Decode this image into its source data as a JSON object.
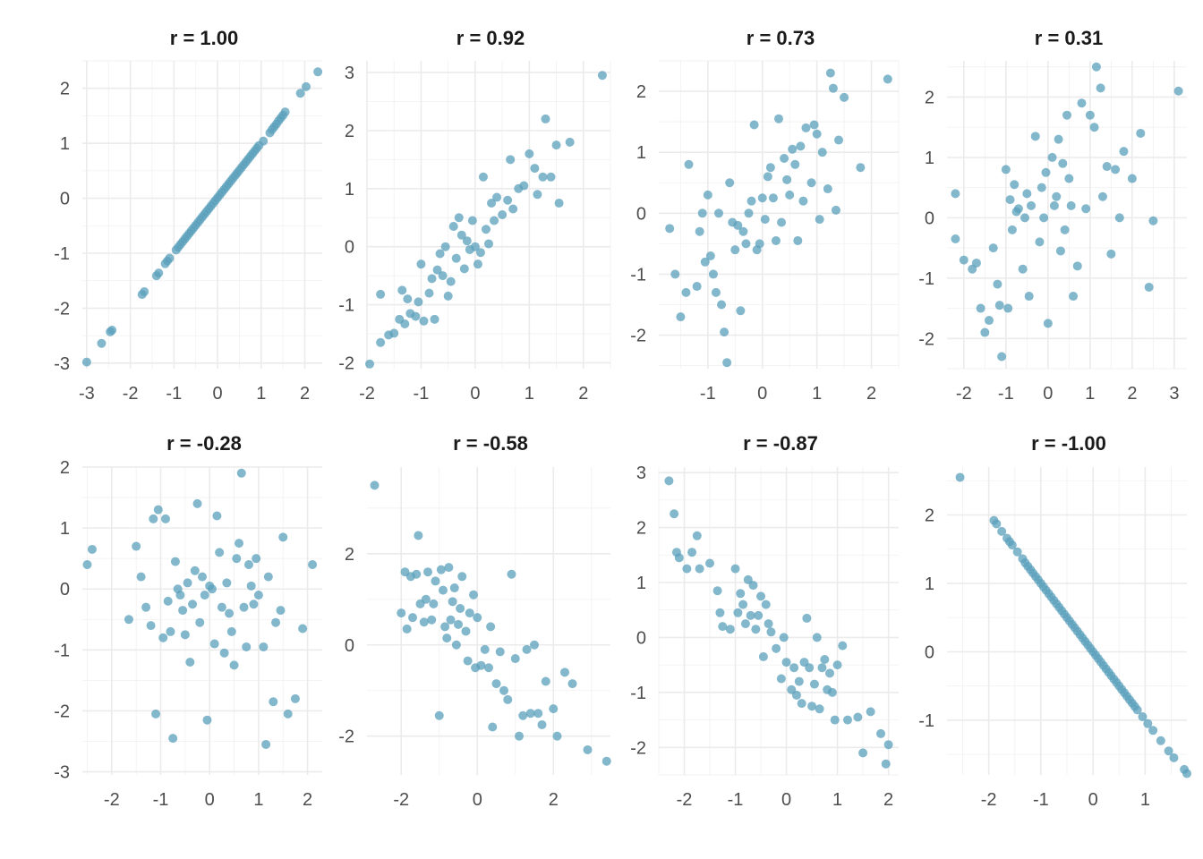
{
  "point_color": "#5a9fbb",
  "chart_data": [
    {
      "type": "scatter",
      "title": "r = 1.00",
      "grid": true,
      "xlim": [
        -3.1,
        2.4
      ],
      "ylim": [
        -3.1,
        2.5
      ],
      "xticks": [
        -3,
        -2,
        -1,
        0,
        1,
        2
      ],
      "yticks": [
        -3,
        -2,
        -1,
        0,
        1,
        2
      ],
      "x": [
        -3.0,
        -2.66,
        -2.46,
        -2.42,
        -1.73,
        -1.68,
        -1.4,
        -1.35,
        -1.2,
        -1.15,
        -1.1,
        -0.95,
        -0.9,
        -0.85,
        -0.8,
        -0.75,
        -0.7,
        -0.65,
        -0.6,
        -0.55,
        -0.5,
        -0.45,
        -0.4,
        -0.35,
        -0.3,
        -0.25,
        -0.2,
        -0.15,
        -0.1,
        -0.05,
        0.0,
        0.05,
        0.1,
        0.15,
        0.2,
        0.25,
        0.3,
        0.35,
        0.4,
        0.45,
        0.5,
        0.55,
        0.6,
        0.65,
        0.7,
        0.75,
        0.8,
        0.85,
        0.9,
        0.95,
        1.05,
        1.2,
        1.25,
        1.3,
        1.35,
        1.4,
        1.45,
        1.5,
        1.55,
        1.9,
        2.03,
        2.3
      ],
      "y": [
        -2.98,
        -2.64,
        -2.43,
        -2.4,
        -1.75,
        -1.7,
        -1.41,
        -1.36,
        -1.19,
        -1.14,
        -1.09,
        -0.94,
        -0.89,
        -0.84,
        -0.79,
        -0.74,
        -0.69,
        -0.64,
        -0.59,
        -0.54,
        -0.49,
        -0.44,
        -0.39,
        -0.34,
        -0.29,
        -0.24,
        -0.19,
        -0.14,
        -0.09,
        -0.04,
        0.01,
        0.06,
        0.11,
        0.16,
        0.21,
        0.26,
        0.31,
        0.36,
        0.41,
        0.46,
        0.51,
        0.56,
        0.61,
        0.66,
        0.71,
        0.76,
        0.81,
        0.86,
        0.91,
        0.96,
        1.04,
        1.19,
        1.25,
        1.3,
        1.35,
        1.41,
        1.46,
        1.51,
        1.57,
        1.91,
        2.03,
        2.3
      ]
    },
    {
      "type": "scatter",
      "title": "r = 0.92",
      "grid": true,
      "xlim": [
        -2.0,
        2.5
      ],
      "ylim": [
        -2.1,
        3.2
      ],
      "xticks": [
        -2,
        -1,
        0,
        1,
        2
      ],
      "yticks": [
        -2,
        -1,
        0,
        1,
        2,
        3
      ],
      "x": [
        -1.95,
        -1.75,
        -1.75,
        -1.6,
        -1.5,
        -1.4,
        -1.35,
        -1.3,
        -1.25,
        -1.2,
        -1.1,
        -1.05,
        -1.0,
        -0.95,
        -0.85,
        -0.8,
        -0.75,
        -0.7,
        -0.65,
        -0.6,
        -0.55,
        -0.5,
        -0.45,
        -0.4,
        -0.35,
        -0.3,
        -0.25,
        -0.2,
        -0.15,
        -0.1,
        -0.05,
        0.0,
        0.05,
        0.1,
        0.15,
        0.2,
        0.25,
        0.3,
        0.35,
        0.4,
        0.5,
        0.6,
        0.65,
        0.7,
        0.8,
        0.9,
        1.0,
        1.1,
        1.15,
        1.25,
        1.3,
        1.4,
        1.5,
        1.55,
        1.75,
        2.35
      ],
      "y": [
        -2.02,
        -1.65,
        -0.82,
        -1.52,
        -1.49,
        -1.25,
        -0.75,
        -1.33,
        -0.9,
        -1.15,
        -1.2,
        -0.95,
        -0.3,
        -1.28,
        -0.8,
        -0.55,
        -1.25,
        -0.4,
        -0.12,
        -0.5,
        0.0,
        -0.85,
        -0.6,
        0.35,
        -0.2,
        0.5,
        0.2,
        -0.38,
        0.1,
        -0.05,
        0.45,
        0.0,
        -0.3,
        -0.1,
        1.2,
        0.3,
        0.05,
        0.75,
        0.45,
        0.85,
        0.55,
        0.8,
        1.5,
        0.65,
        1.0,
        1.05,
        1.6,
        1.35,
        0.9,
        1.2,
        2.2,
        1.2,
        1.75,
        0.75,
        1.8,
        2.95
      ]
    },
    {
      "type": "scatter",
      "title": "r = 0.73",
      "grid": true,
      "xlim": [
        -1.9,
        2.5
      ],
      "ylim": [
        -2.55,
        2.5
      ],
      "xticks": [
        -1,
        0,
        1,
        2
      ],
      "yticks": [
        -2,
        -1,
        0,
        1,
        2
      ],
      "x": [
        -1.7,
        -1.6,
        -1.5,
        -1.4,
        -1.35,
        -1.2,
        -1.15,
        -1.1,
        -1.05,
        -1.0,
        -0.95,
        -0.9,
        -0.85,
        -0.8,
        -0.75,
        -0.7,
        -0.65,
        -0.6,
        -0.55,
        -0.5,
        -0.45,
        -0.4,
        -0.35,
        -0.3,
        -0.25,
        -0.2,
        -0.15,
        -0.1,
        -0.05,
        0.0,
        0.05,
        0.1,
        0.15,
        0.2,
        0.25,
        0.3,
        0.35,
        0.4,
        0.45,
        0.5,
        0.55,
        0.6,
        0.65,
        0.7,
        0.75,
        0.8,
        0.9,
        0.95,
        1.0,
        1.05,
        1.1,
        1.2,
        1.25,
        1.3,
        1.35,
        1.4,
        1.5,
        1.8,
        2.3
      ],
      "y": [
        -0.25,
        -1.0,
        -1.7,
        -1.3,
        0.8,
        -1.2,
        -0.3,
        0.0,
        -0.8,
        0.3,
        -0.7,
        -1.0,
        -1.3,
        0.0,
        -1.5,
        -1.95,
        -2.45,
        0.5,
        -0.15,
        -0.6,
        -0.2,
        -1.6,
        -0.3,
        -0.5,
        0.0,
        0.2,
        1.45,
        -0.6,
        -0.5,
        0.25,
        -0.1,
        0.6,
        0.75,
        0.25,
        -0.45,
        1.55,
        -0.15,
        0.9,
        0.55,
        0.3,
        1.05,
        0.8,
        -0.45,
        1.1,
        0.2,
        1.4,
        0.5,
        1.45,
        1.3,
        -0.1,
        1.0,
        0.4,
        2.3,
        2.05,
        0.05,
        1.2,
        1.9,
        0.75,
        2.2
      ]
    },
    {
      "type": "scatter",
      "title": "r = 0.31",
      "grid": true,
      "xlim": [
        -2.4,
        3.3
      ],
      "ylim": [
        -2.5,
        2.6
      ],
      "xticks": [
        -2,
        -1,
        0,
        1,
        2,
        3
      ],
      "yticks": [
        -2,
        -1,
        0,
        1,
        2
      ],
      "x": [
        -2.2,
        -2.2,
        -2.0,
        -1.8,
        -1.7,
        -1.6,
        -1.5,
        -1.4,
        -1.3,
        -1.2,
        -1.15,
        -1.1,
        -1.0,
        -0.95,
        -0.9,
        -0.85,
        -0.8,
        -0.75,
        -0.7,
        -0.6,
        -0.55,
        -0.5,
        -0.45,
        -0.4,
        -0.3,
        -0.2,
        -0.15,
        -0.1,
        -0.05,
        0.0,
        0.1,
        0.15,
        0.2,
        0.25,
        0.3,
        0.35,
        0.4,
        0.45,
        0.5,
        0.55,
        0.6,
        0.7,
        0.8,
        0.9,
        1.0,
        1.1,
        1.15,
        1.25,
        1.3,
        1.4,
        1.5,
        1.6,
        1.7,
        1.8,
        2.0,
        2.2,
        2.4,
        2.5,
        3.1
      ],
      "y": [
        0.4,
        -0.35,
        -0.7,
        -0.85,
        -0.75,
        -1.5,
        -1.9,
        -1.7,
        -0.5,
        -1.1,
        -1.45,
        -2.3,
        0.8,
        -1.5,
        0.3,
        -0.2,
        0.55,
        0.1,
        0.15,
        -0.85,
        0.0,
        0.4,
        -1.3,
        0.2,
        1.35,
        -0.4,
        0.5,
        0.0,
        0.75,
        -1.75,
        1.0,
        0.2,
        0.35,
        1.3,
        -0.55,
        0.9,
        -0.2,
        1.7,
        0.65,
        0.2,
        -1.3,
        -0.8,
        1.9,
        0.15,
        1.7,
        1.5,
        2.5,
        2.15,
        0.35,
        0.85,
        -0.6,
        0.8,
        0.0,
        1.1,
        0.65,
        1.4,
        -1.15,
        -0.05,
        2.1
      ]
    },
    {
      "type": "scatter",
      "title": "r = -0.28",
      "grid": true,
      "xlim": [
        -2.6,
        2.3
      ],
      "ylim": [
        -3.05,
        2.0
      ],
      "xticks": [
        -2,
        -1,
        0,
        1,
        2
      ],
      "yticks": [
        -3,
        -2,
        -1,
        0,
        1,
        2
      ],
      "x": [
        -2.5,
        -2.4,
        -1.65,
        -1.5,
        -1.4,
        -1.3,
        -1.2,
        -1.15,
        -1.1,
        -1.05,
        -0.95,
        -0.9,
        -0.85,
        -0.8,
        -0.75,
        -0.7,
        -0.65,
        -0.6,
        -0.55,
        -0.5,
        -0.45,
        -0.4,
        -0.35,
        -0.3,
        -0.25,
        -0.2,
        -0.15,
        -0.1,
        -0.05,
        0.0,
        0.05,
        0.1,
        0.15,
        0.2,
        0.25,
        0.3,
        0.35,
        0.4,
        0.45,
        0.5,
        0.55,
        0.6,
        0.65,
        0.7,
        0.75,
        0.8,
        0.85,
        0.9,
        0.95,
        1.0,
        1.1,
        1.15,
        1.2,
        1.3,
        1.35,
        1.45,
        1.5,
        1.6,
        1.75,
        1.9,
        2.1
      ],
      "y": [
        0.4,
        0.65,
        -0.5,
        0.7,
        0.2,
        -0.3,
        -0.6,
        1.15,
        -2.05,
        1.3,
        -0.8,
        1.15,
        -0.2,
        -0.7,
        -2.45,
        0.45,
        0.0,
        -0.1,
        -0.35,
        -0.75,
        0.1,
        -1.2,
        -0.25,
        0.3,
        1.4,
        -0.55,
        0.2,
        -0.1,
        -2.15,
        0.05,
        0.0,
        -0.9,
        1.2,
        0.6,
        -0.3,
        -1.05,
        0.1,
        -0.4,
        -0.7,
        -1.25,
        0.5,
        0.75,
        1.9,
        -0.3,
        -0.95,
        0.4,
        0.05,
        -0.25,
        0.5,
        -0.1,
        -0.95,
        -2.55,
        0.2,
        -1.85,
        -0.55,
        -0.35,
        0.85,
        -2.05,
        -1.8,
        -0.65,
        0.4
      ]
    },
    {
      "type": "scatter",
      "title": "r = -0.58",
      "grid": true,
      "xlim": [
        -2.9,
        3.5
      ],
      "ylim": [
        -2.85,
        3.9
      ],
      "xticks": [
        -2,
        0,
        2
      ],
      "yticks": [
        -2,
        0,
        2
      ],
      "x": [
        -2.7,
        -2.0,
        -1.9,
        -1.85,
        -1.75,
        -1.7,
        -1.6,
        -1.55,
        -1.5,
        -1.4,
        -1.35,
        -1.3,
        -1.2,
        -1.15,
        -1.1,
        -1.0,
        -0.95,
        -0.9,
        -0.85,
        -0.8,
        -0.75,
        -0.7,
        -0.65,
        -0.6,
        -0.55,
        -0.5,
        -0.45,
        -0.4,
        -0.3,
        -0.25,
        -0.2,
        -0.1,
        -0.05,
        0.0,
        0.1,
        0.2,
        0.3,
        0.35,
        0.4,
        0.5,
        0.6,
        0.7,
        0.8,
        0.9,
        1.0,
        1.1,
        1.2,
        1.3,
        1.4,
        1.5,
        1.6,
        1.7,
        1.8,
        2.0,
        2.1,
        2.3,
        2.5,
        2.9,
        3.4
      ],
      "y": [
        3.5,
        0.7,
        1.6,
        0.35,
        1.5,
        0.6,
        1.55,
        2.4,
        0.9,
        0.5,
        1.0,
        1.6,
        0.55,
        0.9,
        1.4,
        -1.55,
        1.65,
        1.2,
        0.4,
        0.15,
        1.7,
        0.55,
        0.95,
        1.25,
        0.0,
        0.45,
        0.8,
        1.5,
        0.3,
        -0.35,
        0.7,
        1.1,
        -0.5,
        0.6,
        -0.45,
        -0.1,
        -0.5,
        0.4,
        -1.8,
        -0.85,
        -0.15,
        -1.0,
        -1.2,
        1.55,
        -0.3,
        -2.0,
        -1.55,
        -0.1,
        -1.5,
        0.0,
        -1.5,
        -1.75,
        -0.8,
        -1.4,
        -2.0,
        -0.6,
        -0.85,
        -2.3,
        -2.55
      ]
    },
    {
      "type": "scatter",
      "title": "r = -0.87",
      "grid": true,
      "xlim": [
        -2.5,
        2.2
      ],
      "ylim": [
        -2.5,
        3.1
      ],
      "xticks": [
        -2,
        -1,
        0,
        1,
        2
      ],
      "yticks": [
        -2,
        -1,
        0,
        1,
        2,
        3
      ],
      "x": [
        -2.3,
        -2.2,
        -2.15,
        -2.1,
        -1.95,
        -1.85,
        -1.75,
        -1.7,
        -1.5,
        -1.35,
        -1.3,
        -1.25,
        -1.1,
        -1.0,
        -0.95,
        -0.9,
        -0.85,
        -0.8,
        -0.75,
        -0.7,
        -0.65,
        -0.6,
        -0.55,
        -0.5,
        -0.45,
        -0.4,
        -0.35,
        -0.3,
        -0.2,
        -0.1,
        -0.05,
        0.0,
        0.1,
        0.15,
        0.2,
        0.25,
        0.3,
        0.35,
        0.4,
        0.45,
        0.5,
        0.55,
        0.6,
        0.65,
        0.7,
        0.75,
        0.8,
        0.85,
        0.9,
        0.95,
        1.0,
        1.1,
        1.2,
        1.4,
        1.5,
        1.65,
        1.85,
        1.95,
        2.0
      ],
      "y": [
        2.85,
        2.25,
        1.55,
        1.45,
        1.25,
        1.55,
        1.85,
        1.25,
        1.35,
        0.85,
        0.45,
        0.2,
        0.15,
        1.25,
        0.45,
        0.8,
        0.6,
        0.25,
        1.05,
        0.4,
        0.95,
        0.15,
        0.4,
        0.75,
        -0.35,
        0.6,
        0.25,
        0.1,
        -0.2,
        -0.75,
        0.0,
        -0.45,
        -0.95,
        -0.55,
        -1.05,
        -0.8,
        -1.2,
        -0.45,
        0.35,
        -0.55,
        -1.25,
        -0.85,
        0.0,
        -1.3,
        -0.55,
        -0.4,
        -0.95,
        -0.65,
        -1.0,
        -1.5,
        -0.5,
        -0.15,
        -1.5,
        -1.45,
        -2.1,
        -1.35,
        -1.75,
        -2.3,
        -1.95
      ]
    },
    {
      "type": "scatter",
      "title": "r = -1.00",
      "grid": true,
      "xlim": [
        -2.8,
        1.8
      ],
      "ylim": [
        -1.8,
        2.7
      ],
      "xticks": [
        -2,
        -1,
        0,
        1
      ],
      "yticks": [
        -1,
        0,
        1,
        2
      ],
      "x": [
        -2.55,
        -1.9,
        -1.85,
        -1.75,
        -1.65,
        -1.6,
        -1.55,
        -1.45,
        -1.35,
        -1.3,
        -1.25,
        -1.2,
        -1.15,
        -1.1,
        -1.05,
        -1.0,
        -0.95,
        -0.9,
        -0.85,
        -0.8,
        -0.75,
        -0.7,
        -0.65,
        -0.6,
        -0.55,
        -0.5,
        -0.45,
        -0.4,
        -0.35,
        -0.3,
        -0.25,
        -0.2,
        -0.15,
        -0.1,
        -0.05,
        0.0,
        0.05,
        0.1,
        0.15,
        0.2,
        0.25,
        0.3,
        0.35,
        0.4,
        0.45,
        0.5,
        0.55,
        0.6,
        0.65,
        0.7,
        0.75,
        0.8,
        0.85,
        0.95,
        1.05,
        1.15,
        1.3,
        1.45,
        1.55,
        1.75,
        1.8
      ],
      "y": [
        2.55,
        1.92,
        1.87,
        1.76,
        1.66,
        1.61,
        1.56,
        1.46,
        1.36,
        1.3,
        1.25,
        1.2,
        1.15,
        1.1,
        1.05,
        1.0,
        0.95,
        0.9,
        0.85,
        0.8,
        0.75,
        0.7,
        0.65,
        0.6,
        0.55,
        0.5,
        0.45,
        0.4,
        0.35,
        0.3,
        0.25,
        0.2,
        0.15,
        0.1,
        0.05,
        0.0,
        -0.05,
        -0.1,
        -0.15,
        -0.2,
        -0.25,
        -0.3,
        -0.35,
        -0.4,
        -0.45,
        -0.5,
        -0.55,
        -0.6,
        -0.65,
        -0.7,
        -0.75,
        -0.8,
        -0.85,
        -0.95,
        -1.05,
        -1.15,
        -1.3,
        -1.45,
        -1.55,
        -1.72,
        -1.78
      ]
    }
  ]
}
